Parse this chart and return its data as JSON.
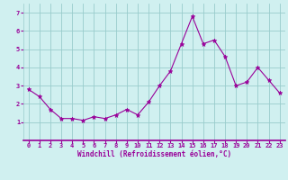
{
  "x": [
    0,
    1,
    2,
    3,
    4,
    5,
    6,
    7,
    8,
    9,
    10,
    11,
    12,
    13,
    14,
    15,
    16,
    17,
    18,
    19,
    20,
    21,
    22,
    23
  ],
  "y": [
    2.8,
    2.4,
    1.7,
    1.2,
    1.2,
    1.1,
    1.3,
    1.2,
    1.4,
    1.7,
    1.4,
    2.1,
    3.0,
    3.8,
    5.3,
    6.8,
    5.3,
    5.5,
    4.6,
    3.0,
    3.2,
    4.0,
    3.3,
    2.6
  ],
  "line_color": "#990099",
  "marker": "*",
  "marker_size": 3.5,
  "bg_color": "#d0f0f0",
  "grid_color": "#99cccc",
  "xlabel": "Windchill (Refroidissement éolien,°C)",
  "xlabel_color": "#990099",
  "tick_color": "#990099",
  "axis_line_color": "#990099",
  "ylim": [
    0,
    7.5
  ],
  "yticks": [
    1,
    2,
    3,
    4,
    5,
    6,
    7
  ],
  "xlim": [
    -0.5,
    23.5
  ],
  "xticks": [
    0,
    1,
    2,
    3,
    4,
    5,
    6,
    7,
    8,
    9,
    10,
    11,
    12,
    13,
    14,
    15,
    16,
    17,
    18,
    19,
    20,
    21,
    22,
    23
  ],
  "tick_fontsize": 5,
  "xlabel_fontsize": 5.5,
  "ylabel_fontsize": 5
}
